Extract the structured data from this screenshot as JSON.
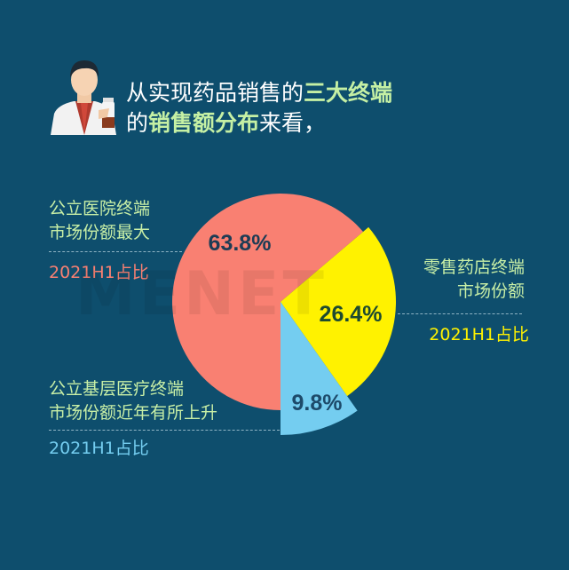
{
  "header": {
    "line1_plain": "从实现药品销售的",
    "line1_highlight": "三大终端",
    "line2_plain_a": "的",
    "line2_highlight": "销售额分布",
    "line2_plain_b": "来看，",
    "icon": "pharmacist-holding-bottle-icon"
  },
  "watermark": "MENET",
  "colors": {
    "background": "#0e4e6d",
    "highlight": "#c5f0a4",
    "hospital": "#f98072",
    "retail": "#fff200",
    "primary": "#74cdf0"
  },
  "chart_data": {
    "type": "pie",
    "variant": "rose (unequal radii)",
    "categories": [
      "公立医院终端",
      "零售药店终端",
      "公立基层医疗终端"
    ],
    "values": [
      63.8,
      26.4,
      9.8
    ],
    "unit": "%",
    "data_labels": [
      "63.8%",
      "26.4%",
      "9.8%"
    ],
    "colors": [
      "#f98072",
      "#fff200",
      "#74cdf0"
    ],
    "annotations": [
      {
        "line1": "公立医院终端",
        "line2": "市场份额最大",
        "period": "2021H1占比"
      },
      {
        "line1": "零售药店终端",
        "line2": "市场份额",
        "period": "2021H1占比"
      },
      {
        "line1": "公立基层医疗终端",
        "line2": "市场份额近年有所上升",
        "period": "2021H1占比"
      }
    ]
  }
}
